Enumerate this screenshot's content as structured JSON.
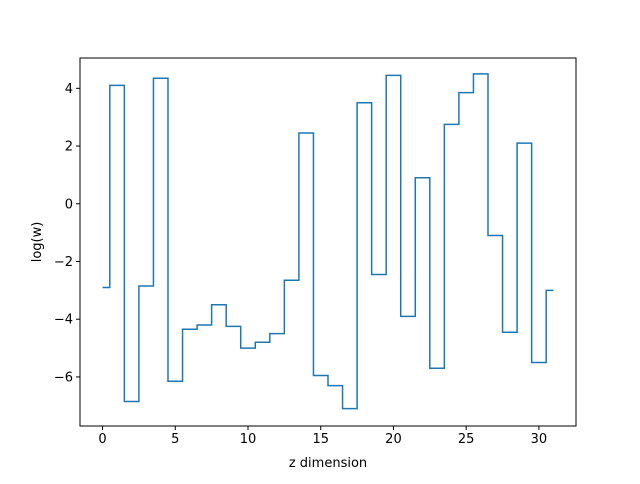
{
  "chart_data": {
    "type": "line",
    "step": "mid",
    "title": "",
    "xlabel": "z dimension",
    "ylabel": "log(w)",
    "xlim": [
      -1.55,
      32.55
    ],
    "ylim": [
      -7.7,
      5.05
    ],
    "xticks": [
      0,
      5,
      10,
      15,
      20,
      25,
      30
    ],
    "xtick_labels": [
      "0",
      "5",
      "10",
      "15",
      "20",
      "25",
      "30"
    ],
    "yticks": [
      -6,
      -4,
      -2,
      0,
      2,
      4
    ],
    "ytick_labels": [
      "−6",
      "−4",
      "−2",
      "0",
      "2",
      "4"
    ],
    "grid": false,
    "legend": false,
    "series": [
      {
        "color": "#1f77b4",
        "x": [
          0,
          1,
          2,
          3,
          4,
          5,
          6,
          7,
          8,
          9,
          10,
          11,
          12,
          13,
          14,
          15,
          16,
          17,
          18,
          19,
          20,
          21,
          22,
          23,
          24,
          25,
          26,
          27,
          28,
          29,
          30,
          31
        ],
        "values": [
          -2.9,
          4.1,
          -6.85,
          -2.85,
          4.35,
          -6.15,
          -4.35,
          -4.2,
          -3.5,
          -4.25,
          -5.0,
          -4.8,
          -4.5,
          -2.65,
          2.45,
          -5.95,
          -6.3,
          -7.1,
          3.5,
          -2.45,
          4.45,
          -3.9,
          0.9,
          -5.7,
          2.75,
          3.85,
          4.5,
          -1.1,
          -4.45,
          2.1,
          -5.5,
          -3.0
        ]
      }
    ]
  }
}
